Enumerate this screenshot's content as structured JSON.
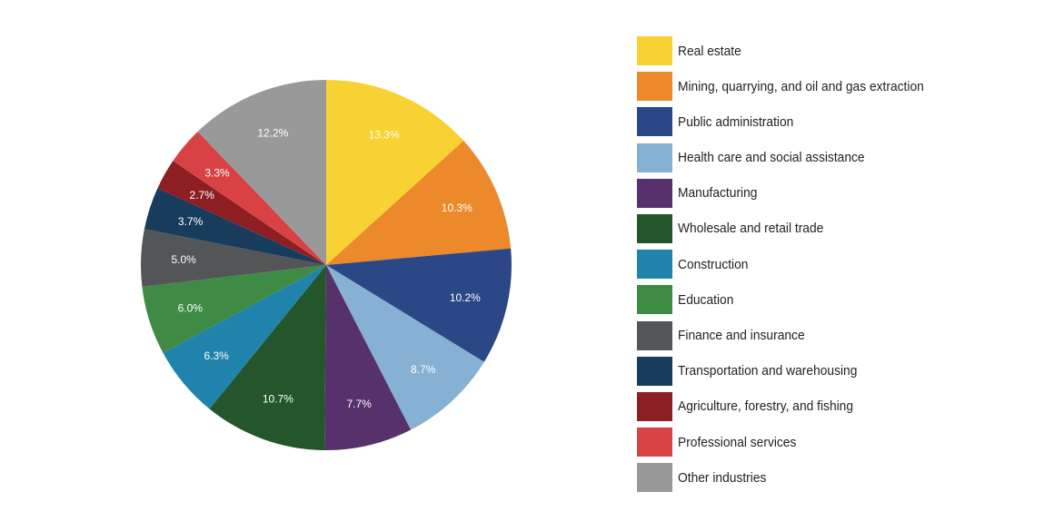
{
  "chart_data": {
    "type": "pie",
    "categories": [
      "Real estate",
      "Mining, quarrying, and oil and gas extraction",
      "Public administration",
      "Health care and social assistance",
      "Manufacturing",
      "Wholesale and retail trade",
      "Construction",
      "Education",
      "Finance and insurance",
      "Transportation and warehousing",
      "Agriculture, forestry, and fishing",
      "Professional services",
      "Other industries"
    ],
    "values": [
      13.3,
      10.3,
      10.2,
      8.7,
      7.7,
      10.7,
      6.3,
      6.0,
      5.0,
      3.7,
      2.7,
      3.3,
      12.2
    ],
    "value_labels": [
      "13.3%",
      "10.3%",
      "10.2%",
      "8.7%",
      "7.7%",
      "10.7%",
      "6.3%",
      "6.0%",
      "5.0%",
      "3.7%",
      "2.7%",
      "3.3%",
      "12.2%"
    ],
    "colors": [
      "#f8d133",
      "#ec8a2b",
      "#2b4786",
      "#86b1d3",
      "#57316b",
      "#24552b",
      "#1f83ab",
      "#3f8a45",
      "#545557",
      "#183c5c",
      "#8d1f23",
      "#d94245",
      "#999999"
    ],
    "legend_position": "right",
    "direction": "clockwise",
    "start": "top"
  }
}
